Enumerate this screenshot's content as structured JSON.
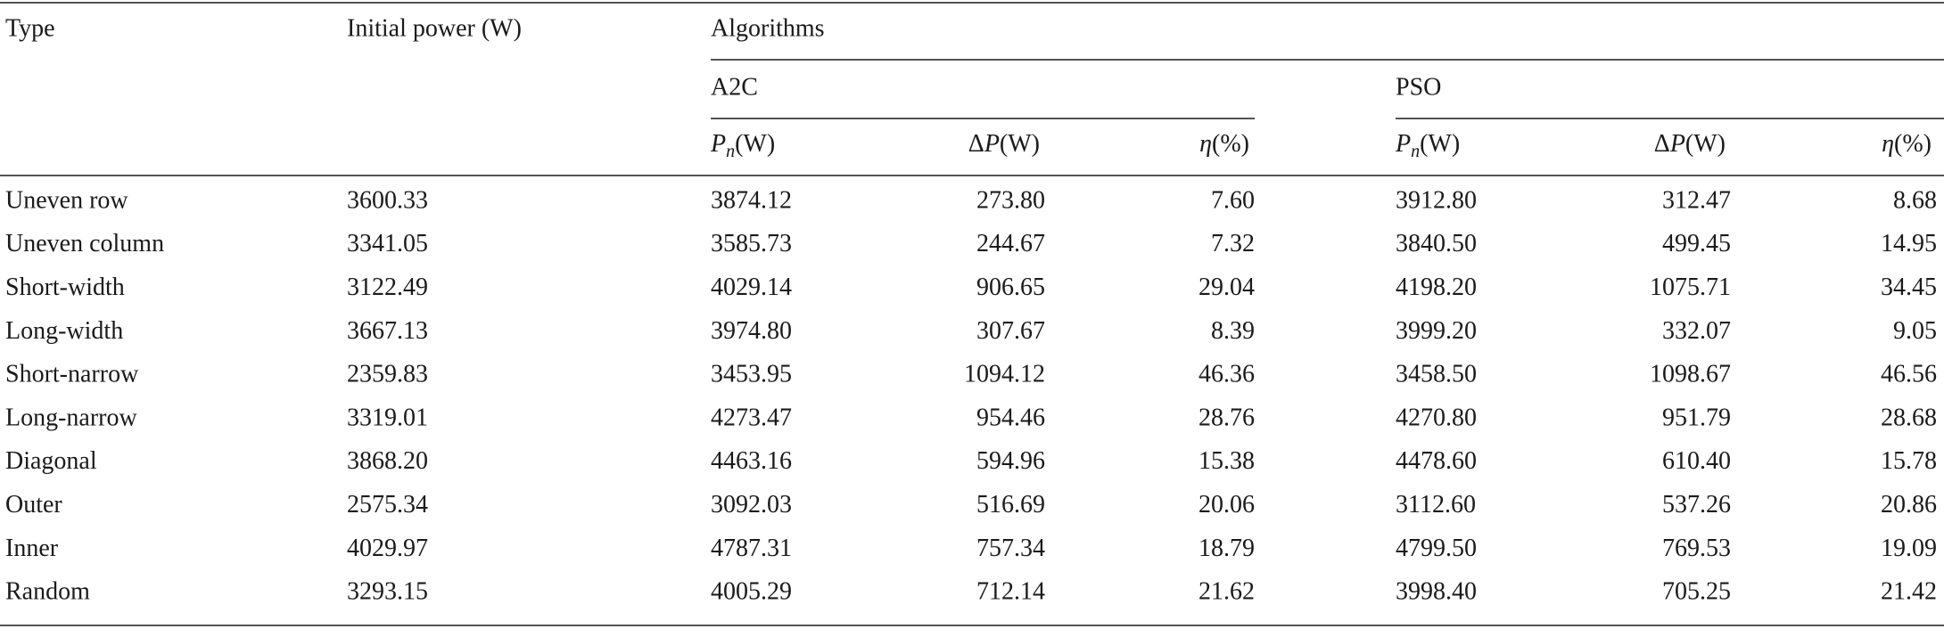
{
  "table": {
    "headers": {
      "type": "Type",
      "initial_power": "Initial power (W)",
      "algorithms": "Algorithms",
      "groups": [
        "A2C",
        "PSO"
      ],
      "sub_columns": [
        {
          "symbol": "P",
          "subscript": "n",
          "unit": "(W)"
        },
        {
          "prefix": "Δ",
          "symbol": "P",
          "unit": "(W)"
        },
        {
          "symbol": "η",
          "unit": "(%)"
        }
      ]
    },
    "rows": [
      [
        "Uneven row",
        "3600.33",
        "3874.12",
        "273.80",
        "7.60",
        "3912.80",
        "312.47",
        "8.68"
      ],
      [
        "Uneven column",
        "3341.05",
        "3585.73",
        "244.67",
        "7.32",
        "3840.50",
        "499.45",
        "14.95"
      ],
      [
        "Short-width",
        "3122.49",
        "4029.14",
        "906.65",
        "29.04",
        "4198.20",
        "1075.71",
        "34.45"
      ],
      [
        "Long-width",
        "3667.13",
        "3974.80",
        "307.67",
        "8.39",
        "3999.20",
        "332.07",
        "9.05"
      ],
      [
        "Short-narrow",
        "2359.83",
        "3453.95",
        "1094.12",
        "46.36",
        "3458.50",
        "1098.67",
        "46.56"
      ],
      [
        "Long-narrow",
        "3319.01",
        "4273.47",
        "954.46",
        "28.76",
        "4270.80",
        "951.79",
        "28.68"
      ],
      [
        "Diagonal",
        "3868.20",
        "4463.16",
        "594.96",
        "15.38",
        "4478.60",
        "610.40",
        "15.78"
      ],
      [
        "Outer",
        "2575.34",
        "3092.03",
        "516.69",
        "20.06",
        "3112.60",
        "537.26",
        "20.86"
      ],
      [
        "Inner",
        "4029.97",
        "4787.31",
        "757.34",
        "18.79",
        "4799.50",
        "769.53",
        "19.09"
      ],
      [
        "Random",
        "3293.15",
        "4005.29",
        "712.14",
        "21.62",
        "3998.40",
        "705.25",
        "21.42"
      ]
    ]
  }
}
